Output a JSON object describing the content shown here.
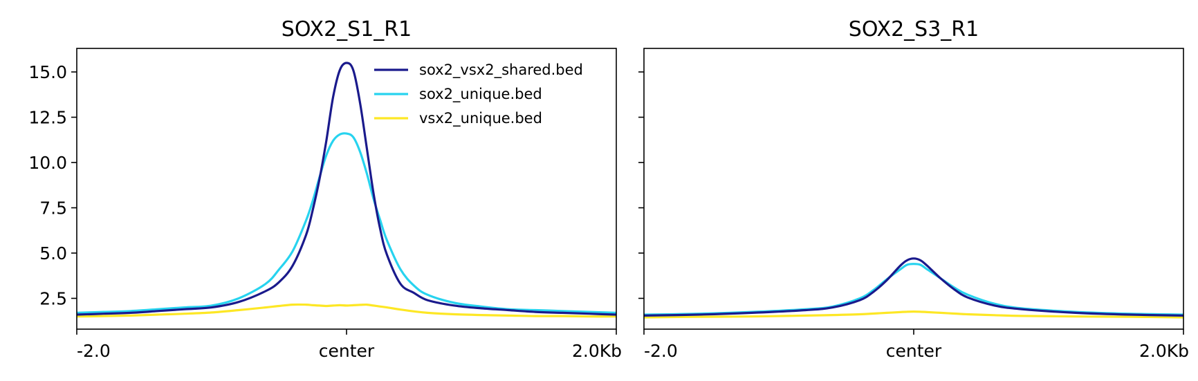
{
  "colors": {
    "shared": "#1a1a8c",
    "sox2_unique": "#27d3ef",
    "vsx2_unique": "#fde725"
  },
  "chart_data": [
    {
      "type": "line",
      "title": "SOX2_S1_R1",
      "xlabel": "",
      "ylabel": "",
      "x_tick_labels": [
        "-2.0",
        "center",
        "2.0Kb"
      ],
      "x": [
        -2.0,
        -1.8,
        -1.6,
        -1.4,
        -1.2,
        -1.0,
        -0.8,
        -0.6,
        -0.5,
        -0.4,
        -0.3,
        -0.25,
        -0.2,
        -0.15,
        -0.1,
        -0.05,
        0.0,
        0.05,
        0.1,
        0.15,
        0.2,
        0.25,
        0.3,
        0.4,
        0.5,
        0.6,
        0.8,
        1.0,
        1.2,
        1.4,
        1.6,
        1.8,
        2.0
      ],
      "ylim": [
        0.8,
        16.3
      ],
      "y_ticks": [
        2.5,
        5.0,
        7.5,
        10.0,
        12.5,
        15.0
      ],
      "y_tick_labels": [
        "2.5",
        "5.0",
        "7.5",
        "10.0",
        "12.5",
        "15.0"
      ],
      "legend_position": "top-right",
      "series": [
        {
          "name": "sox2_vsx2_shared.bed",
          "color_key": "shared",
          "values": [
            1.6,
            1.65,
            1.7,
            1.8,
            1.9,
            2.0,
            2.3,
            2.9,
            3.4,
            4.3,
            6.0,
            7.4,
            9.1,
            11.2,
            13.6,
            15.1,
            15.5,
            15.1,
            13.3,
            10.8,
            8.3,
            6.3,
            4.9,
            3.3,
            2.8,
            2.4,
            2.1,
            1.95,
            1.85,
            1.75,
            1.7,
            1.65,
            1.6
          ]
        },
        {
          "name": "sox2_unique.bed",
          "color_key": "sox2_unique",
          "values": [
            1.7,
            1.75,
            1.8,
            1.9,
            2.0,
            2.1,
            2.5,
            3.3,
            4.1,
            5.1,
            6.8,
            7.9,
            9.2,
            10.4,
            11.2,
            11.55,
            11.6,
            11.4,
            10.6,
            9.4,
            8.0,
            6.8,
            5.7,
            4.1,
            3.2,
            2.7,
            2.25,
            2.05,
            1.9,
            1.85,
            1.8,
            1.75,
            1.7
          ]
        },
        {
          "name": "vsx2_unique.bed",
          "color_key": "vsx2_unique",
          "values": [
            1.5,
            1.52,
            1.55,
            1.6,
            1.65,
            1.72,
            1.85,
            2.0,
            2.08,
            2.15,
            2.15,
            2.12,
            2.1,
            2.08,
            2.1,
            2.12,
            2.1,
            2.12,
            2.14,
            2.15,
            2.1,
            2.05,
            2.0,
            1.88,
            1.78,
            1.7,
            1.62,
            1.58,
            1.55,
            1.52,
            1.52,
            1.5,
            1.5
          ]
        }
      ]
    },
    {
      "type": "line",
      "title": "SOX2_S3_R1",
      "xlabel": "",
      "ylabel": "",
      "x_tick_labels": [
        "-2.0",
        "center",
        "2.0Kb"
      ],
      "x": [
        -2.0,
        -1.6,
        -1.2,
        -0.8,
        -0.6,
        -0.4,
        -0.3,
        -0.2,
        -0.1,
        -0.05,
        0.0,
        0.05,
        0.1,
        0.2,
        0.3,
        0.4,
        0.6,
        0.8,
        1.2,
        1.6,
        2.0
      ],
      "ylim": [
        0.8,
        16.3
      ],
      "y_ticks": [
        2.5,
        5.0,
        7.5,
        10.0,
        12.5,
        15.0
      ],
      "y_tick_labels": [],
      "series": [
        {
          "name": "sox2_vsx2_shared.bed",
          "color_key": "shared",
          "values": [
            1.55,
            1.6,
            1.7,
            1.85,
            2.0,
            2.4,
            2.85,
            3.5,
            4.3,
            4.6,
            4.7,
            4.6,
            4.3,
            3.6,
            3.0,
            2.55,
            2.1,
            1.9,
            1.7,
            1.6,
            1.55
          ]
        },
        {
          "name": "sox2_unique.bed",
          "color_key": "sox2_unique",
          "values": [
            1.6,
            1.65,
            1.75,
            1.9,
            2.05,
            2.5,
            2.95,
            3.55,
            4.1,
            4.35,
            4.4,
            4.35,
            4.1,
            3.6,
            3.1,
            2.7,
            2.2,
            1.95,
            1.75,
            1.65,
            1.6
          ]
        },
        {
          "name": "vsx2_unique.bed",
          "color_key": "vsx2_unique",
          "values": [
            1.45,
            1.48,
            1.5,
            1.55,
            1.58,
            1.62,
            1.66,
            1.7,
            1.74,
            1.76,
            1.77,
            1.76,
            1.74,
            1.7,
            1.66,
            1.62,
            1.57,
            1.53,
            1.5,
            1.48,
            1.45
          ]
        }
      ]
    }
  ]
}
